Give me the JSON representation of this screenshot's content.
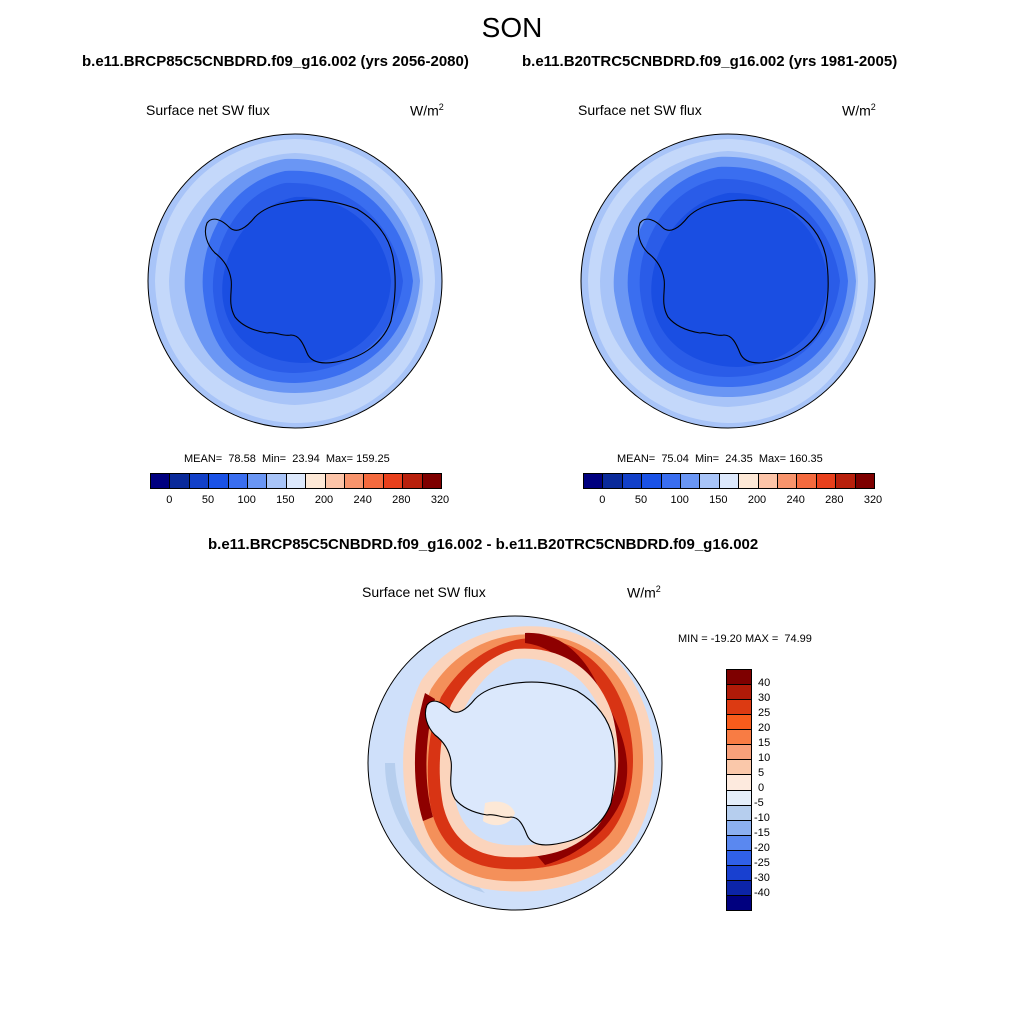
{
  "figure": {
    "season": "SON",
    "case_future": "b.e11.BRCP85C5CNBDRD.f09_g16.002 (yrs 2056-2080)",
    "case_hist": "b.e11.B20TRC5CNBDRD.f09_g16.002 (yrs 1981-2005)",
    "diff_title": "b.e11.BRCP85C5CNBDRD.f09_g16.002 - b.e11.B20TRC5CNBDRD.f09_g16.002"
  },
  "panels": [
    {
      "variable": "Surface net SW flux",
      "units": "W/m",
      "units_sup": "2",
      "stats": "MEAN=  78.58  Min=  23.94  Max= 159.25"
    },
    {
      "variable": "Surface net SW flux",
      "units": "W/m",
      "units_sup": "2",
      "stats": "MEAN=  75.04  Min=  24.35  Max= 160.35"
    },
    {
      "variable": "Surface net SW flux",
      "units": "W/m",
      "units_sup": "2",
      "stats": "MIN = -19.20 MAX =  74.99"
    }
  ],
  "colorbar_abs": {
    "colors": [
      "#00007f",
      "#0a2a9a",
      "#1240c8",
      "#1a52e6",
      "#3a6ef0",
      "#6a96f4",
      "#a8c4f8",
      "#dce8fc",
      "#fde8d6",
      "#fcc4a8",
      "#f8946c",
      "#f46a3e",
      "#e8401c",
      "#b8200c",
      "#7e0000"
    ],
    "ticks": [
      "0",
      "50",
      "100",
      "150",
      "200",
      "240",
      "280",
      "320"
    ]
  },
  "colorbar_diff": {
    "colors_top_to_bottom": [
      "#7e0000",
      "#b01a08",
      "#dc3a12",
      "#f85c1c",
      "#f87c44",
      "#f8a07a",
      "#fac8aa",
      "#fdeade",
      "#e4eefa",
      "#b6ceee",
      "#8cb0f0",
      "#5a88f0",
      "#3060e8",
      "#1840d0",
      "#0c24a8",
      "#00007f"
    ],
    "labels": [
      "40",
      "30",
      "25",
      "20",
      "15",
      "10",
      "5",
      "0",
      "-5",
      "-10",
      "-15",
      "-20",
      "-25",
      "-30",
      "-40"
    ]
  },
  "map_colors": {
    "antarctic_interior": "#1a4ee2",
    "ring_inner": "#2a5ce8",
    "ring_mid": "#3a6ef0",
    "ring_outer": "#6a96f4",
    "ocean_outer": "#a8c4f8",
    "diff_base": "#cfe0fa",
    "diff_land": "#dbe8fc",
    "diff_red_dark": "#8e0000",
    "diff_red": "#d83414",
    "diff_orange": "#f4905a",
    "diff_light": "#fbd4bc"
  }
}
